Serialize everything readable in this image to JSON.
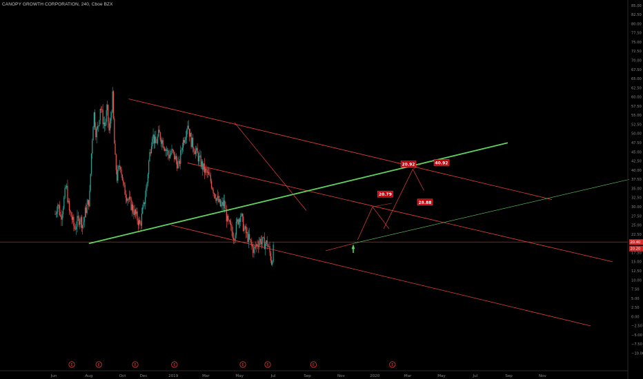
{
  "header": {
    "title": "CANOPY GROWTH CORPORATION, 240, Cboe BZX"
  },
  "colors": {
    "background": "#000000",
    "channel": "#e8403a",
    "trend": "#5fd35f",
    "candle_up": "#26a69a",
    "candle_down": "#ef5350",
    "label_fill": "#c4000b",
    "axis_text": "#8a8a8a"
  },
  "chart_data": {
    "type": "candlestick",
    "title": "CANOPY GROWTH CORPORATION, 240, Cboe BZX",
    "ylim": [
      -12.5,
      85
    ],
    "y_ticks": [
      85,
      82.5,
      80,
      77.5,
      75,
      72.5,
      70,
      67.5,
      65,
      62.5,
      60,
      57.5,
      55,
      52.5,
      50,
      47.5,
      45,
      42.5,
      40,
      37.5,
      35,
      32.5,
      30,
      27.5,
      25,
      22.5,
      20,
      17.5,
      15,
      12.5,
      10,
      7.5,
      5,
      2.5,
      0,
      -2.5,
      -5,
      -7.5,
      -10
    ],
    "y_tick_labels": [
      "85.00",
      "82.50",
      "80.00",
      "77.50",
      "75.00",
      "72.50",
      "70.00",
      "67.50",
      "65.00",
      "62.50",
      "60.00",
      "57.50",
      "55.00",
      "52.50",
      "50.00",
      "47.50",
      "45.00",
      "42.50",
      "40.00",
      "37.50",
      "35.00",
      "32.50",
      "30.00",
      "27.50",
      "25.00",
      "22.50",
      "20.00",
      "17.50",
      "15.00",
      "12.50",
      "10.00",
      "7.50",
      "5.00",
      "2.50",
      "0.00",
      "−2.50",
      "−5.00",
      "−7.50",
      "−10.00"
    ],
    "x_ticks": [
      "Jun",
      "Aug",
      "Oct",
      "Dec",
      "2019",
      "Mar",
      "May",
      "Jul",
      "Sep",
      "Nov",
      "2020",
      "Mar",
      "May",
      "Jul",
      "Sep",
      "Nov"
    ],
    "x_tick_days": [
      0,
      61,
      122,
      160,
      214,
      273,
      334,
      395,
      457,
      518,
      579,
      639,
      700,
      761,
      822,
      883
    ],
    "price_path": [
      [
        0,
        28
      ],
      [
        5,
        31
      ],
      [
        10,
        27
      ],
      [
        15,
        31
      ],
      [
        20,
        36
      ],
      [
        25,
        29
      ],
      [
        30,
        27
      ],
      [
        35,
        24
      ],
      [
        40,
        26
      ],
      [
        45,
        27
      ],
      [
        50,
        25
      ],
      [
        55,
        29
      ],
      [
        62,
        32
      ],
      [
        66,
        46
      ],
      [
        70,
        56
      ],
      [
        74,
        50
      ],
      [
        78,
        52
      ],
      [
        82,
        58
      ],
      [
        86,
        54
      ],
      [
        90,
        52
      ],
      [
        94,
        57
      ],
      [
        98,
        50
      ],
      [
        104,
        60
      ],
      [
        108,
        44
      ],
      [
        112,
        38
      ],
      [
        118,
        42
      ],
      [
        124,
        35
      ],
      [
        130,
        33
      ],
      [
        136,
        31
      ],
      [
        142,
        29
      ],
      [
        148,
        27
      ],
      [
        154,
        25
      ],
      [
        160,
        30
      ],
      [
        166,
        36
      ],
      [
        170,
        43
      ],
      [
        176,
        50
      ],
      [
        182,
        47
      ],
      [
        188,
        50
      ],
      [
        194,
        48
      ],
      [
        200,
        46
      ],
      [
        206,
        44
      ],
      [
        212,
        45
      ],
      [
        218,
        43
      ],
      [
        224,
        41
      ],
      [
        230,
        47
      ],
      [
        236,
        50
      ],
      [
        240,
        53
      ],
      [
        246,
        48
      ],
      [
        252,
        46
      ],
      [
        258,
        44
      ],
      [
        264,
        42
      ],
      [
        270,
        40
      ],
      [
        276,
        39
      ],
      [
        282,
        37
      ],
      [
        288,
        34
      ],
      [
        294,
        32
      ],
      [
        300,
        30
      ],
      [
        306,
        31
      ],
      [
        312,
        26
      ],
      [
        318,
        24
      ],
      [
        324,
        22
      ],
      [
        330,
        26
      ],
      [
        336,
        28
      ],
      [
        342,
        24
      ],
      [
        348,
        22
      ],
      [
        354,
        20
      ],
      [
        360,
        18
      ],
      [
        366,
        20
      ],
      [
        372,
        21
      ],
      [
        378,
        20
      ],
      [
        384,
        20
      ],
      [
        388,
        18
      ],
      [
        392,
        15
      ],
      [
        396,
        19
      ]
    ],
    "annotations": [
      {
        "text": "20.92",
        "price": 41.6,
        "day": 640
      },
      {
        "text": "40.92",
        "price": 42.0,
        "day": 700
      },
      {
        "text": "20.79",
        "price": 33.4,
        "day": 598
      },
      {
        "text": "28.88",
        "price": 31.2,
        "day": 670
      }
    ],
    "earnings_markers": [
      "E",
      "E",
      "E",
      "E",
      "E",
      "E",
      "E",
      "E"
    ],
    "last_price": {
      "label": "20.40",
      "value": 20.4
    },
    "current_price": {
      "label": "20.20",
      "value": 20.2
    }
  }
}
